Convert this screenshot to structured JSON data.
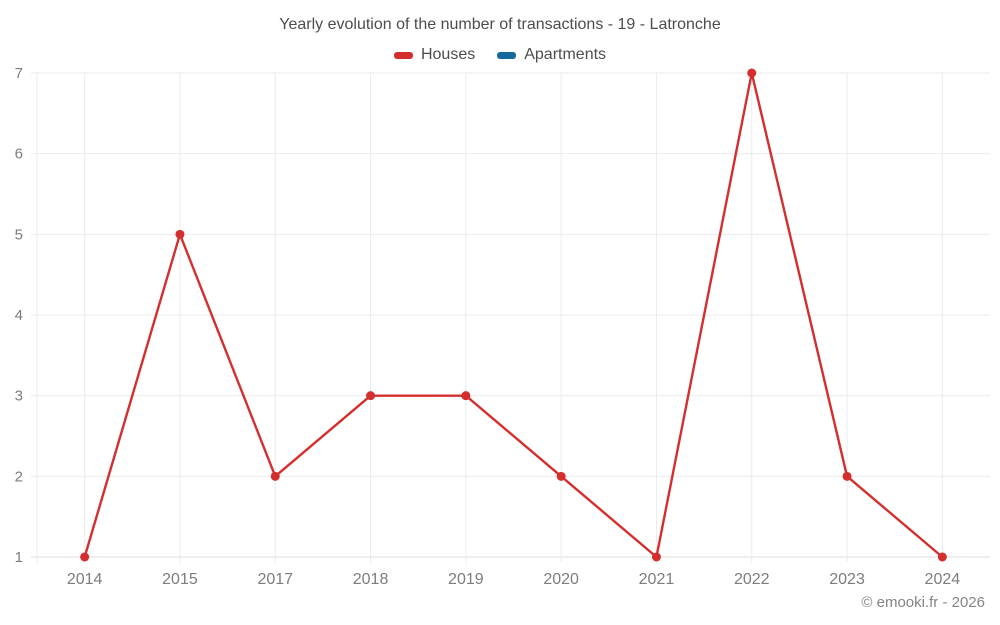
{
  "title": "Yearly evolution of the number of transactions - 19 - Latronche",
  "legend": [
    {
      "label": "Houses",
      "color": "#d32f2f"
    },
    {
      "label": "Apartments",
      "color": "#15699c"
    }
  ],
  "footer": "© emooki.fr - 2026",
  "colors": {
    "gridline": "#ebebeb",
    "axis_line": "#dcdcdc",
    "tick_label": "#7d7d7d"
  },
  "chart_data": {
    "type": "line",
    "categories": [
      "2014",
      "2015",
      "2017",
      "2018",
      "2019",
      "2020",
      "2021",
      "2022",
      "2023",
      "2024"
    ],
    "series": [
      {
        "name": "Houses",
        "color": "#d32f2f",
        "values": [
          1,
          5,
          2,
          3,
          3,
          2,
          1,
          7,
          2,
          1
        ]
      },
      {
        "name": "Apartments",
        "color": "#15699c",
        "values": []
      }
    ],
    "title": "Yearly evolution of the number of transactions - 19 - Latronche",
    "xlabel": "",
    "ylabel": "",
    "ylim": [
      1,
      7
    ],
    "yticks": [
      1,
      2,
      3,
      4,
      5,
      6,
      7
    ],
    "grid": true,
    "legend_position": "top"
  }
}
